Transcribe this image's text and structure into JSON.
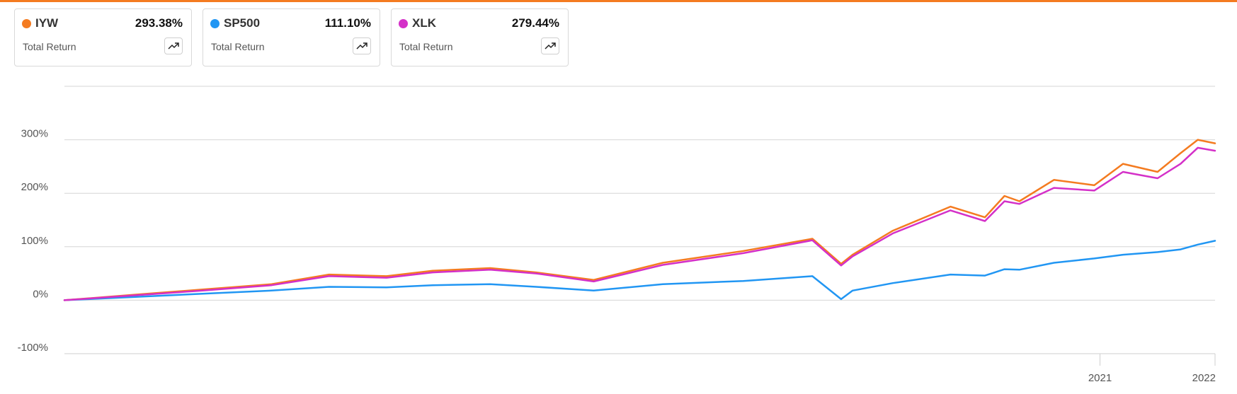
{
  "accent_color": "#f47b20",
  "cards": [
    {
      "ticker": "IYW",
      "value": "293.38%",
      "subtitle": "Total Return",
      "color": "#f47b20",
      "icon": "trend-up-icon"
    },
    {
      "ticker": "SP500",
      "value": "111.10%",
      "subtitle": "Total Return",
      "color": "#2196f3",
      "icon": "trend-up-icon"
    },
    {
      "ticker": "XLK",
      "value": "279.44%",
      "subtitle": "Total Return",
      "color": "#d430c8",
      "icon": "trend-up-icon"
    }
  ],
  "chart_data": {
    "type": "line",
    "ylim": [
      -100,
      400
    ],
    "yticks": [
      -100,
      0,
      100,
      200,
      300
    ],
    "ytick_labels": [
      "-100%",
      "0%",
      "100%",
      "200%",
      "300%"
    ],
    "xlim": [
      2012.0,
      2022.0
    ],
    "xticks": [
      2021,
      2022
    ],
    "xtick_labels": [
      "2021",
      "2022"
    ],
    "grid": true,
    "series": [
      {
        "name": "IYW",
        "color": "#f47b20",
        "x": [
          2012.0,
          2012.6,
          2013.2,
          2013.8,
          2014.3,
          2014.8,
          2015.2,
          2015.7,
          2016.1,
          2016.6,
          2017.2,
          2017.9,
          2018.5,
          2018.75,
          2018.85,
          2019.2,
          2019.7,
          2020.0,
          2020.17,
          2020.3,
          2020.6,
          2020.95,
          2021.2,
          2021.5,
          2021.7,
          2021.85,
          2022.0
        ],
        "y": [
          0,
          10,
          20,
          30,
          48,
          45,
          55,
          60,
          52,
          38,
          70,
          92,
          115,
          68,
          85,
          130,
          175,
          155,
          195,
          185,
          225,
          215,
          255,
          240,
          275,
          300,
          293.38
        ]
      },
      {
        "name": "SP500",
        "color": "#2196f3",
        "x": [
          2012.0,
          2012.6,
          2013.2,
          2013.8,
          2014.3,
          2014.8,
          2015.2,
          2015.7,
          2016.1,
          2016.6,
          2017.2,
          2017.9,
          2018.5,
          2018.75,
          2018.85,
          2019.2,
          2019.7,
          2020.0,
          2020.17,
          2020.3,
          2020.6,
          2020.95,
          2021.2,
          2021.5,
          2021.7,
          2021.85,
          2022.0
        ],
        "y": [
          0,
          6,
          12,
          18,
          25,
          24,
          28,
          30,
          25,
          18,
          30,
          36,
          45,
          2,
          18,
          32,
          48,
          46,
          58,
          57,
          70,
          78,
          85,
          90,
          95,
          104,
          111.1
        ]
      },
      {
        "name": "XLK",
        "color": "#d430c8",
        "x": [
          2012.0,
          2012.6,
          2013.2,
          2013.8,
          2014.3,
          2014.8,
          2015.2,
          2015.7,
          2016.1,
          2016.6,
          2017.2,
          2017.9,
          2018.5,
          2018.75,
          2018.85,
          2019.2,
          2019.7,
          2020.0,
          2020.17,
          2020.3,
          2020.6,
          2020.95,
          2021.2,
          2021.5,
          2021.7,
          2021.85,
          2022.0
        ],
        "y": [
          0,
          9,
          18,
          28,
          45,
          42,
          52,
          57,
          50,
          35,
          66,
          88,
          112,
          65,
          82,
          125,
          168,
          148,
          185,
          180,
          210,
          205,
          240,
          228,
          255,
          285,
          279.44
        ]
      }
    ]
  }
}
